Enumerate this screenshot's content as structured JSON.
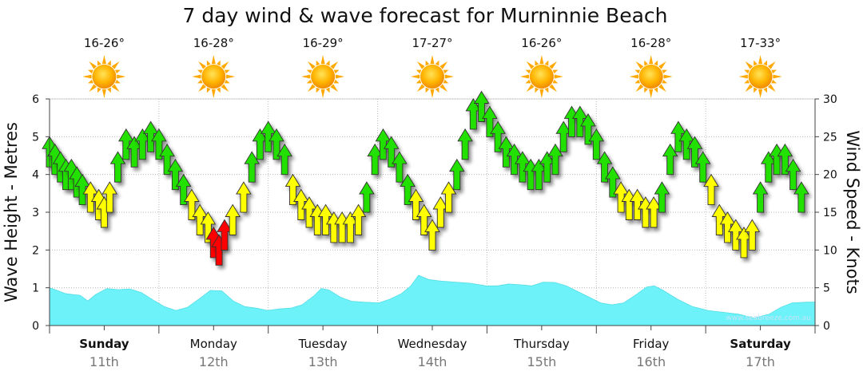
{
  "chart_data": {
    "type": "area",
    "title": "7 day wind & wave forecast for Murninnie Beach",
    "ylabel_left": "Wave Height - Metres",
    "ylabel_right": "Wind Speed - Knots",
    "ylim_left": [
      0,
      6
    ],
    "ylim_right": [
      0,
      30
    ],
    "left_ticks": [
      "0",
      "1",
      "2",
      "3",
      "4",
      "5",
      "6"
    ],
    "right_ticks": [
      "0",
      "5",
      "10",
      "15",
      "20",
      "25",
      "30"
    ],
    "grid": true,
    "days": [
      {
        "name": "Sunday",
        "date": "11th",
        "temp": "16-26°",
        "bold": true
      },
      {
        "name": "Monday",
        "date": "12th",
        "temp": "16-28°",
        "bold": false
      },
      {
        "name": "Tuesday",
        "date": "13th",
        "temp": "16-29°",
        "bold": false
      },
      {
        "name": "Wednesday",
        "date": "14th",
        "temp": "17-27°",
        "bold": false
      },
      {
        "name": "Thursday",
        "date": "15th",
        "temp": "16-26°",
        "bold": false
      },
      {
        "name": "Friday",
        "date": "16th",
        "temp": "16-28°",
        "bold": false
      },
      {
        "name": "Saturday",
        "date": "17th",
        "temp": "17-33°",
        "bold": true
      }
    ],
    "wave_height_series": [
      {
        "t": 0.0,
        "m": 1.0
      },
      {
        "t": 0.1,
        "m": 0.93
      },
      {
        "t": 0.2,
        "m": 0.85
      },
      {
        "t": 0.3,
        "m": 0.82
      },
      {
        "t": 0.4,
        "m": 0.8
      },
      {
        "t": 0.5,
        "m": 0.65
      },
      {
        "t": 0.6,
        "m": 0.82
      },
      {
        "t": 0.75,
        "m": 0.98
      },
      {
        "t": 0.9,
        "m": 0.95
      },
      {
        "t": 1.05,
        "m": 0.97
      },
      {
        "t": 1.2,
        "m": 0.87
      },
      {
        "t": 1.35,
        "m": 0.68
      },
      {
        "t": 1.5,
        "m": 0.5
      },
      {
        "t": 1.65,
        "m": 0.4
      },
      {
        "t": 1.8,
        "m": 0.48
      },
      {
        "t": 1.95,
        "m": 0.7
      },
      {
        "t": 2.1,
        "m": 0.93
      },
      {
        "t": 2.25,
        "m": 0.92
      },
      {
        "t": 2.4,
        "m": 0.65
      },
      {
        "t": 2.55,
        "m": 0.5
      },
      {
        "t": 2.7,
        "m": 0.46
      },
      {
        "t": 2.85,
        "m": 0.4
      },
      {
        "t": 3.0,
        "m": 0.44
      },
      {
        "t": 3.15,
        "m": 0.46
      },
      {
        "t": 3.3,
        "m": 0.55
      },
      {
        "t": 3.45,
        "m": 0.78
      },
      {
        "t": 3.55,
        "m": 0.98
      },
      {
        "t": 3.65,
        "m": 0.94
      },
      {
        "t": 3.8,
        "m": 0.75
      },
      {
        "t": 3.95,
        "m": 0.64
      },
      {
        "t": 4.1,
        "m": 0.62
      },
      {
        "t": 4.3,
        "m": 0.6
      },
      {
        "t": 4.45,
        "m": 0.7
      },
      {
        "t": 4.6,
        "m": 0.85
      },
      {
        "t": 4.72,
        "m": 1.05
      },
      {
        "t": 4.82,
        "m": 1.33
      },
      {
        "t": 4.95,
        "m": 1.22
      },
      {
        "t": 5.1,
        "m": 1.18
      },
      {
        "t": 5.3,
        "m": 1.15
      },
      {
        "t": 5.5,
        "m": 1.12
      },
      {
        "t": 5.7,
        "m": 1.05
      },
      {
        "t": 5.85,
        "m": 1.05
      },
      {
        "t": 6.0,
        "m": 1.1
      },
      {
        "t": 6.15,
        "m": 1.08
      },
      {
        "t": 6.3,
        "m": 1.05
      },
      {
        "t": 6.45,
        "m": 1.15
      },
      {
        "t": 6.6,
        "m": 1.14
      },
      {
        "t": 6.75,
        "m": 1.05
      },
      {
        "t": 6.9,
        "m": 0.9
      },
      {
        "t": 7.05,
        "m": 0.75
      },
      {
        "t": 7.2,
        "m": 0.6
      },
      {
        "t": 7.35,
        "m": 0.55
      },
      {
        "t": 7.5,
        "m": 0.6
      },
      {
        "t": 7.65,
        "m": 0.8
      },
      {
        "t": 7.8,
        "m": 1.02
      },
      {
        "t": 7.9,
        "m": 1.05
      },
      {
        "t": 8.0,
        "m": 0.95
      },
      {
        "t": 8.2,
        "m": 0.7
      },
      {
        "t": 8.4,
        "m": 0.5
      },
      {
        "t": 8.6,
        "m": 0.4
      },
      {
        "t": 8.8,
        "m": 0.35
      },
      {
        "t": 9.0,
        "m": 0.3
      },
      {
        "t": 9.2,
        "m": 0.2
      },
      {
        "t": 9.4,
        "m": 0.3
      },
      {
        "t": 9.55,
        "m": 0.48
      },
      {
        "t": 9.7,
        "m": 0.6
      },
      {
        "t": 9.9,
        "m": 0.62
      },
      {
        "t": 10.0,
        "m": 0.62
      }
    ],
    "wind_series": [
      {
        "t": 0.0,
        "kt": 23,
        "color": "#22e000"
      },
      {
        "t": 0.1,
        "kt": 22,
        "color": "#22e000"
      },
      {
        "t": 0.2,
        "kt": 21,
        "color": "#22e000"
      },
      {
        "t": 0.3,
        "kt": 20,
        "color": "#22e000"
      },
      {
        "t": 0.4,
        "kt": 20,
        "color": "#22e000"
      },
      {
        "t": 0.5,
        "kt": 19,
        "color": "#22e000"
      },
      {
        "t": 0.6,
        "kt": 18,
        "color": "#22e000"
      },
      {
        "t": 0.75,
        "kt": 17,
        "color": "#ffff00"
      },
      {
        "t": 0.9,
        "kt": 16,
        "color": "#ffff00"
      },
      {
        "t": 1.0,
        "kt": 15,
        "color": "#ffff00"
      },
      {
        "t": 1.1,
        "kt": 17,
        "color": "#ffff00"
      },
      {
        "t": 1.25,
        "kt": 21,
        "color": "#22e000"
      },
      {
        "t": 1.4,
        "kt": 24,
        "color": "#22e000"
      },
      {
        "t": 1.55,
        "kt": 23,
        "color": "#22e000"
      },
      {
        "t": 1.7,
        "kt": 24,
        "color": "#22e000"
      },
      {
        "t": 1.85,
        "kt": 25,
        "color": "#22e000"
      },
      {
        "t": 2.0,
        "kt": 24,
        "color": "#22e000"
      },
      {
        "t": 2.15,
        "kt": 22,
        "color": "#22e000"
      },
      {
        "t": 2.3,
        "kt": 20,
        "color": "#22e000"
      },
      {
        "t": 2.45,
        "kt": 18,
        "color": "#22e000"
      },
      {
        "t": 2.6,
        "kt": 16,
        "color": "#ffff00"
      },
      {
        "t": 2.75,
        "kt": 14,
        "color": "#ffff00"
      },
      {
        "t": 2.9,
        "kt": 13,
        "color": "#ffff00"
      },
      {
        "t": 3.0,
        "kt": 11,
        "color": "#ff0000"
      },
      {
        "t": 3.1,
        "kt": 10,
        "color": "#ff0000"
      },
      {
        "t": 3.2,
        "kt": 12,
        "color": "#ff0000"
      },
      {
        "t": 3.35,
        "kt": 14,
        "color": "#ffff00"
      },
      {
        "t": 3.55,
        "kt": 17,
        "color": "#ffff00"
      },
      {
        "t": 3.7,
        "kt": 21,
        "color": "#22e000"
      },
      {
        "t": 3.85,
        "kt": 24,
        "color": "#22e000"
      },
      {
        "t": 4.0,
        "kt": 25,
        "color": "#22e000"
      },
      {
        "t": 4.15,
        "kt": 24,
        "color": "#22e000"
      },
      {
        "t": 4.3,
        "kt": 22,
        "color": "#22e000"
      },
      {
        "t": 4.45,
        "kt": 18,
        "color": "#ffff00"
      },
      {
        "t": 4.6,
        "kt": 16,
        "color": "#ffff00"
      },
      {
        "t": 4.75,
        "kt": 15,
        "color": "#ffff00"
      },
      {
        "t": 4.9,
        "kt": 14,
        "color": "#ffff00"
      },
      {
        "t": 5.05,
        "kt": 14,
        "color": "#ffff00"
      },
      {
        "t": 5.2,
        "kt": 13,
        "color": "#ffff00"
      },
      {
        "t": 5.35,
        "kt": 13,
        "color": "#ffff00"
      },
      {
        "t": 5.5,
        "kt": 13,
        "color": "#ffff00"
      },
      {
        "t": 5.65,
        "kt": 14,
        "color": "#ffff00"
      },
      {
        "t": 5.8,
        "kt": 17,
        "color": "#22e000"
      },
      {
        "t": 5.95,
        "kt": 22,
        "color": "#22e000"
      },
      {
        "t": 6.1,
        "kt": 24,
        "color": "#22e000"
      },
      {
        "t": 6.25,
        "kt": 23,
        "color": "#22e000"
      },
      {
        "t": 6.4,
        "kt": 21,
        "color": "#22e000"
      },
      {
        "t": 6.55,
        "kt": 18,
        "color": "#22e000"
      },
      {
        "t": 6.7,
        "kt": 16,
        "color": "#ffff00"
      },
      {
        "t": 6.85,
        "kt": 14,
        "color": "#ffff00"
      },
      {
        "t": 7.0,
        "kt": 12,
        "color": "#ffff00"
      },
      {
        "t": 7.15,
        "kt": 15,
        "color": "#ffff00"
      },
      {
        "t": 7.3,
        "kt": 17,
        "color": "#ffff00"
      },
      {
        "t": 7.45,
        "kt": 20,
        "color": "#22e000"
      },
      {
        "t": 7.6,
        "kt": 24,
        "color": "#22e000"
      },
      {
        "t": 7.75,
        "kt": 28,
        "color": "#22e000"
      },
      {
        "t": 7.9,
        "kt": 29,
        "color": "#22e000"
      },
      {
        "t": 8.05,
        "kt": 27,
        "color": "#22e000"
      },
      {
        "t": 8.2,
        "kt": 25,
        "color": "#22e000"
      },
      {
        "t": 8.35,
        "kt": 23,
        "color": "#22e000"
      },
      {
        "t": 8.5,
        "kt": 22,
        "color": "#22e000"
      },
      {
        "t": 8.65,
        "kt": 21,
        "color": "#22e000"
      },
      {
        "t": 8.8,
        "kt": 20,
        "color": "#22e000"
      },
      {
        "t": 8.95,
        "kt": 20,
        "color": "#22e000"
      },
      {
        "t": 9.1,
        "kt": 21,
        "color": "#22e000"
      },
      {
        "t": 9.25,
        "kt": 22,
        "color": "#22e000"
      },
      {
        "t": 9.4,
        "kt": 25,
        "color": "#22e000"
      },
      {
        "t": 9.55,
        "kt": 27,
        "color": "#22e000"
      },
      {
        "t": 9.7,
        "kt": 27,
        "color": "#22e000"
      },
      {
        "t": 9.85,
        "kt": 26,
        "color": "#22e000"
      },
      {
        "t": 10.0,
        "kt": 24,
        "color": "#22e000"
      },
      {
        "t": 10.15,
        "kt": 21,
        "color": "#22e000"
      },
      {
        "t": 10.3,
        "kt": 19,
        "color": "#22e000"
      },
      {
        "t": 10.45,
        "kt": 17,
        "color": "#ffff00"
      },
      {
        "t": 10.6,
        "kt": 16,
        "color": "#ffff00"
      },
      {
        "t": 10.75,
        "kt": 16,
        "color": "#ffff00"
      },
      {
        "t": 10.9,
        "kt": 15,
        "color": "#ffff00"
      },
      {
        "t": 11.05,
        "kt": 15,
        "color": "#ffff00"
      },
      {
        "t": 11.2,
        "kt": 17,
        "color": "#22e000"
      },
      {
        "t": 11.35,
        "kt": 22,
        "color": "#22e000"
      },
      {
        "t": 11.5,
        "kt": 25,
        "color": "#22e000"
      },
      {
        "t": 11.65,
        "kt": 24,
        "color": "#22e000"
      },
      {
        "t": 11.8,
        "kt": 23,
        "color": "#22e000"
      },
      {
        "t": 11.95,
        "kt": 21,
        "color": "#22e000"
      },
      {
        "t": 12.1,
        "kt": 18,
        "color": "#ffff00"
      },
      {
        "t": 12.25,
        "kt": 14,
        "color": "#ffff00"
      },
      {
        "t": 12.4,
        "kt": 13,
        "color": "#ffff00"
      },
      {
        "t": 12.55,
        "kt": 12,
        "color": "#ffff00"
      },
      {
        "t": 12.7,
        "kt": 11,
        "color": "#ffff00"
      },
      {
        "t": 12.85,
        "kt": 12,
        "color": "#ffff00"
      },
      {
        "t": 13.0,
        "kt": 17,
        "color": "#22e000"
      },
      {
        "t": 13.15,
        "kt": 21,
        "color": "#22e000"
      },
      {
        "t": 13.3,
        "kt": 22,
        "color": "#22e000"
      },
      {
        "t": 13.45,
        "kt": 22,
        "color": "#22e000"
      },
      {
        "t": 13.6,
        "kt": 20,
        "color": "#22e000"
      },
      {
        "t": 13.75,
        "kt": 17,
        "color": "#22e000"
      }
    ],
    "credit": "www.seabreeze.com.au"
  }
}
